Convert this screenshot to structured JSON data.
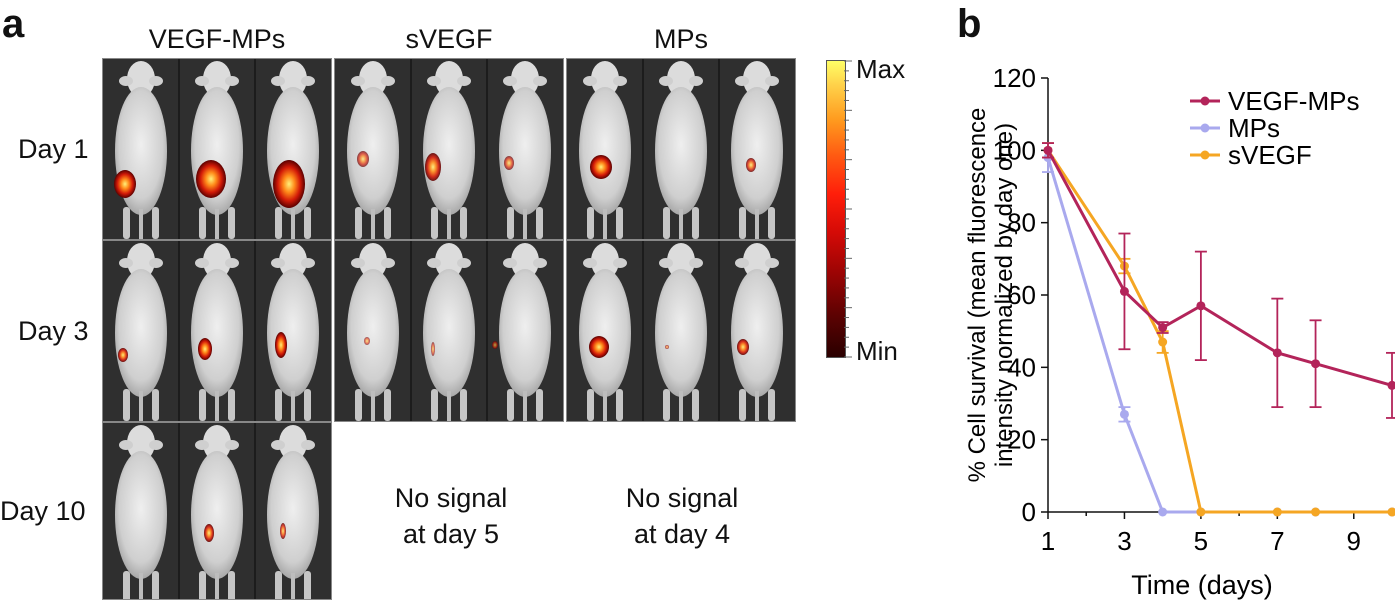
{
  "panel_a": {
    "label": "a",
    "columns": [
      "VEGF-MPs",
      "sVEGF",
      "MPs"
    ],
    "rows": [
      "Day 1",
      "Day 3",
      "Day 10"
    ],
    "no_signal": [
      {
        "line1": "No signal",
        "line2": "at day 5"
      },
      {
        "line1": "No signal",
        "line2": "at day 4"
      }
    ],
    "colorbar": {
      "max_label": "Max",
      "min_label": "Min"
    }
  },
  "panel_b": {
    "label": "b"
  },
  "chart_data": {
    "type": "line",
    "title": "",
    "xlabel": "Time (days)",
    "ylabel_line1": "% Cell survival (mean fluorescence",
    "ylabel_line2": "intensity normalized by day one)",
    "xlim": [
      1,
      10
    ],
    "ylim": [
      0,
      120
    ],
    "xticks": [
      1,
      3,
      5,
      7,
      9
    ],
    "yticks": [
      0,
      20,
      40,
      60,
      80,
      100,
      120
    ],
    "legend_position": "top-right",
    "series": [
      {
        "name": "VEGF-MPs",
        "color": "#b3245a",
        "x": [
          1,
          3,
          4,
          5,
          7,
          8,
          10
        ],
        "y": [
          100,
          61,
          51,
          57,
          44,
          41,
          35
        ],
        "err": [
          2,
          16,
          1.5,
          15,
          15,
          12,
          9
        ]
      },
      {
        "name": "MPs",
        "color": "#a9a9ee",
        "x": [
          1,
          3,
          4,
          5,
          7,
          8,
          10
        ],
        "y": [
          98,
          27,
          0,
          0,
          0,
          0,
          0
        ],
        "err": [
          4,
          2,
          0,
          0,
          0,
          0,
          0
        ]
      },
      {
        "name": "sVEGF",
        "color": "#f5a623",
        "x": [
          1,
          3,
          4,
          5,
          7,
          8,
          10
        ],
        "y": [
          100,
          68,
          47,
          0,
          0,
          0,
          0
        ],
        "err": [
          2,
          2,
          3,
          0,
          0,
          0,
          0
        ]
      }
    ]
  }
}
